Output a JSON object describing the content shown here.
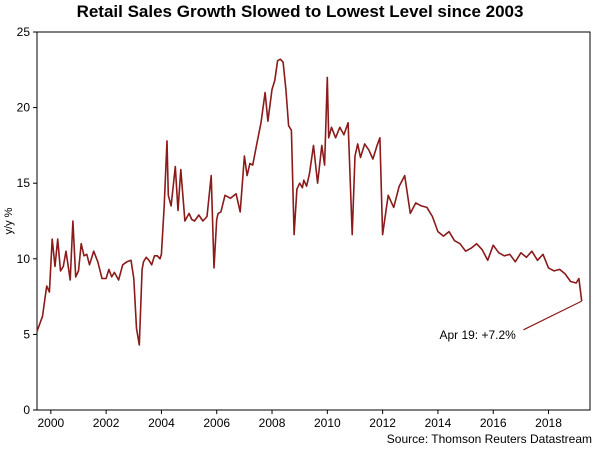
{
  "chart_data": {
    "type": "line",
    "title": "Retail Sales Growth Slowed to Lowest Level since 2003",
    "ylabel": "y/y %",
    "xlabel": "",
    "xlim": [
      1999.5,
      2019.5
    ],
    "ylim": [
      0,
      25
    ],
    "x_ticks": [
      2000,
      2002,
      2004,
      2006,
      2008,
      2010,
      2012,
      2014,
      2016,
      2018
    ],
    "x_tick_labels": [
      "2000",
      "2002",
      "2004",
      "2006",
      "2008",
      "2010",
      "2012",
      "2014",
      "2016",
      "2018"
    ],
    "y_ticks": [
      0,
      5,
      10,
      15,
      20,
      25
    ],
    "y_tick_labels": [
      "0",
      "5",
      "10",
      "15",
      "20",
      "25"
    ],
    "grid": false,
    "color": "#8b1a1a",
    "series": [
      {
        "name": "Retail sales y/y %",
        "x": [
          1999.5,
          1999.7,
          1999.85,
          1999.95,
          2000.05,
          2000.15,
          2000.25,
          2000.35,
          2000.45,
          2000.55,
          2000.7,
          2000.8,
          2000.9,
          2001.0,
          2001.1,
          2001.2,
          2001.3,
          2001.4,
          2001.55,
          2001.7,
          2001.85,
          2002.0,
          2002.1,
          2002.2,
          2002.3,
          2002.45,
          2002.6,
          2002.75,
          2002.9,
          2003.0,
          2003.1,
          2003.2,
          2003.3,
          2003.35,
          2003.45,
          2003.55,
          2003.65,
          2003.75,
          2003.85,
          2003.95,
          2004.0,
          2004.1,
          2004.2,
          2004.25,
          2004.35,
          2004.5,
          2004.6,
          2004.7,
          2004.85,
          2005.0,
          2005.1,
          2005.2,
          2005.35,
          2005.5,
          2005.65,
          2005.8,
          2005.9,
          2006.0,
          2006.05,
          2006.15,
          2006.3,
          2006.5,
          2006.7,
          2006.85,
          2007.0,
          2007.1,
          2007.2,
          2007.3,
          2007.45,
          2007.6,
          2007.75,
          2007.85,
          2008.0,
          2008.1,
          2008.2,
          2008.3,
          2008.4,
          2008.5,
          2008.6,
          2008.7,
          2008.8,
          2008.9,
          2009.0,
          2009.1,
          2009.15,
          2009.25,
          2009.35,
          2009.5,
          2009.65,
          2009.8,
          2009.9,
          2010.0,
          2010.05,
          2010.15,
          2010.3,
          2010.45,
          2010.6,
          2010.75,
          2010.9,
          2011.0,
          2011.1,
          2011.2,
          2011.35,
          2011.5,
          2011.65,
          2011.8,
          2011.9,
          2012.0,
          2012.2,
          2012.4,
          2012.6,
          2012.8,
          2013.0,
          2013.2,
          2013.4,
          2013.6,
          2013.8,
          2014.0,
          2014.2,
          2014.4,
          2014.6,
          2014.8,
          2015.0,
          2015.2,
          2015.4,
          2015.6,
          2015.8,
          2016.0,
          2016.2,
          2016.4,
          2016.6,
          2016.8,
          2017.0,
          2017.2,
          2017.4,
          2017.6,
          2017.8,
          2018.0,
          2018.2,
          2018.4,
          2018.6,
          2018.8,
          2019.0,
          2019.1,
          2019.2
        ],
        "values": [
          5.2,
          6.2,
          8.2,
          7.8,
          11.3,
          9.5,
          11.3,
          9.2,
          9.5,
          10.5,
          8.6,
          12.5,
          8.8,
          9.2,
          11.0,
          10.2,
          10.3,
          9.6,
          10.5,
          9.8,
          8.7,
          8.7,
          9.3,
          8.8,
          9.1,
          8.6,
          9.6,
          9.8,
          9.9,
          8.7,
          5.4,
          4.3,
          9.3,
          9.8,
          10.1,
          9.9,
          9.6,
          10.2,
          10.2,
          10.0,
          10.3,
          13.5,
          17.8,
          14.2,
          13.5,
          16.1,
          13.2,
          15.9,
          12.5,
          13.0,
          12.6,
          12.5,
          12.9,
          12.5,
          12.8,
          15.5,
          9.4,
          12.6,
          13.0,
          13.1,
          14.2,
          14.0,
          14.3,
          13.1,
          16.8,
          15.5,
          16.3,
          16.2,
          17.6,
          19.0,
          21.0,
          19.1,
          21.2,
          21.8,
          23.1,
          23.2,
          23.0,
          21.2,
          18.8,
          18.5,
          11.6,
          14.6,
          15.0,
          14.7,
          15.2,
          14.8,
          15.6,
          17.5,
          15.0,
          17.5,
          16.2,
          22.0,
          18.0,
          18.7,
          18.0,
          18.7,
          18.2,
          19.0,
          11.6,
          16.8,
          17.6,
          16.7,
          17.6,
          17.2,
          16.6,
          17.5,
          18.0,
          11.6,
          14.2,
          13.4,
          14.8,
          15.5,
          13.0,
          13.7,
          13.5,
          13.4,
          12.8,
          11.8,
          11.5,
          11.8,
          11.2,
          11.0,
          10.5,
          10.7,
          11.0,
          10.6,
          9.9,
          10.9,
          10.4,
          10.2,
          10.3,
          9.8,
          10.4,
          10.1,
          10.5,
          9.9,
          10.3,
          9.4,
          9.2,
          9.3,
          9.0,
          8.5,
          8.4,
          8.7,
          7.2
        ]
      }
    ],
    "annotation": {
      "text": "Apr 19: +7.2%",
      "x": 2019.2,
      "y": 7.2,
      "label_x": 2014.2,
      "label_y": 5.5
    }
  },
  "source": "Source: Thomson Reuters Datastream"
}
